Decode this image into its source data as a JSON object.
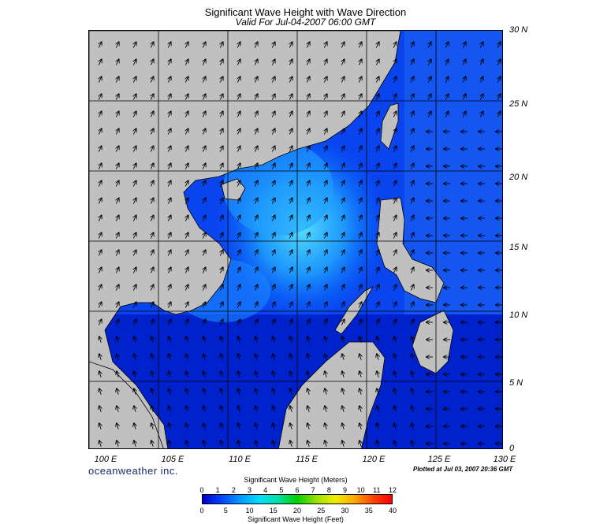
{
  "title": "Significant Wave Height with Wave Direction",
  "subtitle": "Valid For Jul-04-2007 06:00 GMT",
  "lat_labels": [
    "30 N",
    "25 N",
    "20 N",
    "15 N",
    "10 N",
    "5 N",
    "0"
  ],
  "lon_labels": [
    "100 E",
    "105 E",
    "110 E",
    "115 E",
    "120 E",
    "125 E",
    "130 E"
  ],
  "brand": "oceanweather inc.",
  "plotted": "Plotted at Jul 03, 2007 20:36 GMT",
  "colorbar": {
    "title_meters": "Significant Wave Height (Meters)",
    "title_feet": "Significant Wave Height (Feet)",
    "meters_ticks": [
      "0",
      "1",
      "2",
      "3",
      "4",
      "5",
      "6",
      "7",
      "8",
      "9",
      "10",
      "11",
      "12"
    ],
    "feet_ticks": [
      "0",
      "5",
      "10",
      "15",
      "20",
      "25",
      "30",
      "35",
      "40"
    ]
  },
  "colors": {
    "land": "#c0c0c0",
    "sea_low": "#0000cc",
    "sea_mid": "#0066ff",
    "sea_high": "#33ccff"
  }
}
